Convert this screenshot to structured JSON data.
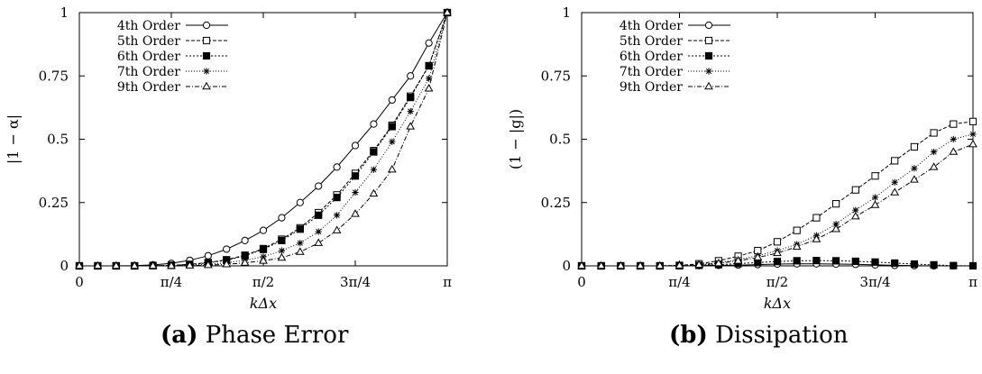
{
  "chart_data": [
    {
      "type": "line",
      "caption_tag": "(a)",
      "caption_text": "Phase Error",
      "xlabel": "kΔx",
      "ylabel": "|1 − α|",
      "xlim": [
        0,
        3.14159
      ],
      "ylim": [
        0,
        1
      ],
      "x_tick_labels": [
        "0",
        "π/4",
        "π/2",
        "3π/4",
        "π"
      ],
      "y_tick_labels": [
        "0",
        "0.25",
        "0.5",
        "0.75",
        "1"
      ],
      "legend_position": "top-left",
      "grid": false,
      "x": [
        0,
        0.1571,
        0.3142,
        0.4712,
        0.6283,
        0.7854,
        0.9425,
        1.0996,
        1.2566,
        1.4137,
        1.5708,
        1.7279,
        1.885,
        2.042,
        2.1991,
        2.3562,
        2.5133,
        2.6704,
        2.8274,
        2.9845,
        3.1416
      ],
      "series": [
        {
          "name": "4th Order",
          "marker": "open-circle",
          "dash": "solid",
          "values": [
            0,
            0,
            0,
            0.001,
            0.004,
            0.01,
            0.022,
            0.04,
            0.066,
            0.1,
            0.14,
            0.19,
            0.25,
            0.315,
            0.39,
            0.475,
            0.56,
            0.655,
            0.75,
            0.88,
            1.0
          ]
        },
        {
          "name": "5th Order",
          "marker": "open-square",
          "dash": "dashed",
          "values": [
            0,
            0,
            0,
            0,
            0.001,
            0.002,
            0.006,
            0.013,
            0.024,
            0.042,
            0.068,
            0.105,
            0.15,
            0.21,
            0.28,
            0.365,
            0.455,
            0.555,
            0.67,
            0.79,
            1.0
          ]
        },
        {
          "name": "6th Order",
          "marker": "filled-square",
          "dash": "dotted",
          "values": [
            0,
            0,
            0,
            0,
            0.001,
            0.002,
            0.005,
            0.012,
            0.022,
            0.04,
            0.065,
            0.1,
            0.145,
            0.2,
            0.27,
            0.355,
            0.45,
            0.55,
            0.665,
            0.79,
            1.0
          ]
        },
        {
          "name": "7th Order",
          "marker": "asterisk",
          "dash": "fine-dotted",
          "values": [
            0,
            0,
            0,
            0,
            0,
            0.001,
            0.003,
            0.006,
            0.012,
            0.022,
            0.036,
            0.06,
            0.09,
            0.135,
            0.2,
            0.29,
            0.38,
            0.49,
            0.61,
            0.74,
            1.0
          ]
        },
        {
          "name": "9th Order",
          "marker": "open-triangle",
          "dash": "dash-dot",
          "values": [
            0,
            0,
            0,
            0,
            0,
            0,
            0.001,
            0.003,
            0.006,
            0.012,
            0.02,
            0.032,
            0.055,
            0.09,
            0.14,
            0.205,
            0.285,
            0.38,
            0.55,
            0.7,
            1.0
          ]
        }
      ]
    },
    {
      "type": "line",
      "caption_tag": "(b)",
      "caption_text": "Dissipation",
      "xlabel": "kΔx",
      "ylabel": "(1 − |g|)",
      "xlim": [
        0,
        3.14159
      ],
      "ylim": [
        0,
        1
      ],
      "x_tick_labels": [
        "0",
        "π/4",
        "π/2",
        "3π/4",
        "π"
      ],
      "y_tick_labels": [
        "0",
        "0.25",
        "0.5",
        "0.75",
        "1"
      ],
      "legend_position": "top-left",
      "grid": false,
      "x": [
        0,
        0.1571,
        0.3142,
        0.4712,
        0.6283,
        0.7854,
        0.9425,
        1.0996,
        1.2566,
        1.4137,
        1.5708,
        1.7279,
        1.885,
        2.042,
        2.1991,
        2.3562,
        2.5133,
        2.6704,
        2.8274,
        2.9845,
        3.1416
      ],
      "series": [
        {
          "name": "4th Order",
          "marker": "open-circle",
          "dash": "solid",
          "values": [
            0,
            0,
            0,
            0,
            0,
            0,
            0.001,
            0.002,
            0.003,
            0.005,
            0.007,
            0.008,
            0.008,
            0.007,
            0.006,
            0.004,
            0.002,
            0.001,
            0,
            0,
            0
          ]
        },
        {
          "name": "5th Order",
          "marker": "open-square",
          "dash": "dashed",
          "values": [
            0,
            0,
            0,
            0,
            0,
            0.002,
            0.008,
            0.02,
            0.038,
            0.06,
            0.095,
            0.14,
            0.19,
            0.245,
            0.3,
            0.355,
            0.415,
            0.47,
            0.525,
            0.56,
            0.57
          ]
        },
        {
          "name": "6th Order",
          "marker": "filled-square",
          "dash": "dotted",
          "values": [
            0,
            0,
            0,
            0,
            0,
            0,
            0.002,
            0.005,
            0.009,
            0.013,
            0.017,
            0.02,
            0.021,
            0.02,
            0.018,
            0.015,
            0.011,
            0.007,
            0.004,
            0.001,
            0
          ]
        },
        {
          "name": "7th Order",
          "marker": "asterisk",
          "dash": "fine-dotted",
          "values": [
            0,
            0,
            0,
            0,
            0,
            0.001,
            0.005,
            0.012,
            0.025,
            0.04,
            0.06,
            0.085,
            0.12,
            0.165,
            0.22,
            0.27,
            0.33,
            0.385,
            0.45,
            0.5,
            0.52
          ]
        },
        {
          "name": "9th Order",
          "marker": "open-triangle",
          "dash": "dash-dot",
          "values": [
            0,
            0,
            0,
            0,
            0,
            0.001,
            0.004,
            0.01,
            0.02,
            0.033,
            0.05,
            0.075,
            0.105,
            0.145,
            0.195,
            0.24,
            0.29,
            0.34,
            0.39,
            0.45,
            0.48
          ]
        }
      ]
    }
  ]
}
